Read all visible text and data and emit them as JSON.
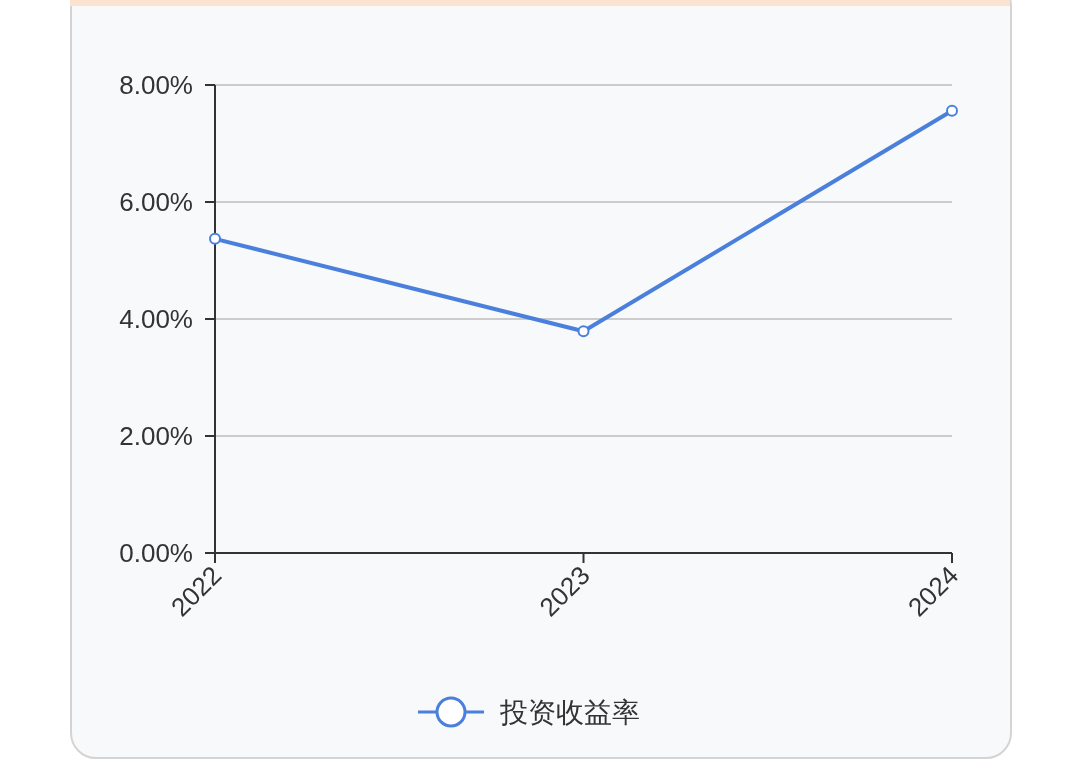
{
  "chart_data": {
    "type": "line",
    "categories": [
      "2022",
      "2023",
      "2024"
    ],
    "series": [
      {
        "name": "投资收益率",
        "color": "#4a80dc",
        "values": [
          5.37,
          3.79,
          7.56
        ]
      }
    ],
    "ylim": [
      0,
      8
    ],
    "yticks": [
      {
        "value": 0,
        "label": "0.00%"
      },
      {
        "value": 2,
        "label": "2.00%"
      },
      {
        "value": 4,
        "label": "4.00%"
      },
      {
        "value": 6,
        "label": "6.00%"
      },
      {
        "value": 8,
        "label": "8.00%"
      }
    ],
    "grid": "y",
    "legend": "bottom",
    "marker": "circle",
    "line_style": "solid"
  }
}
